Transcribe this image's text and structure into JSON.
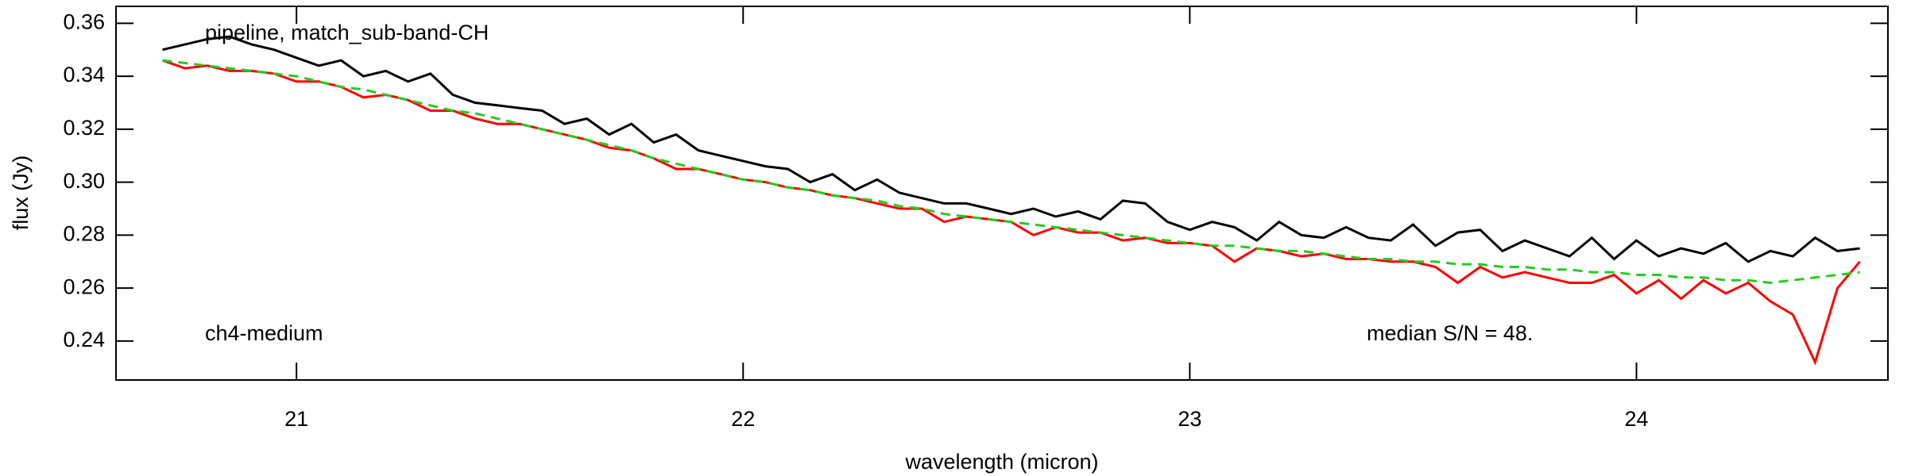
{
  "chart_data": {
    "type": "line",
    "xlabel": "wavelength (micron)",
    "ylabel": "flux (Jy)",
    "annotations": [
      "pipeline, match_sub-band-CH",
      "ch4-medium",
      "median S/N =  48."
    ],
    "xlim": [
      20.596,
      24.563
    ],
    "ylim": [
      0.2253,
      0.3664
    ],
    "xticks": [
      21,
      22,
      23,
      24
    ],
    "yticks": [
      0.24,
      0.26,
      0.28,
      {
        "value": 0.3,
        "label": "0.30"
      },
      0.32,
      0.34,
      0.36
    ],
    "x": [
      20.7,
      20.75,
      20.8,
      20.85,
      20.9,
      20.95,
      21,
      21.05,
      21.1,
      21.15,
      21.2,
      21.25,
      21.3,
      21.35,
      21.4,
      21.45,
      21.5,
      21.55,
      21.6,
      21.65,
      21.7,
      21.75,
      21.8,
      21.85,
      21.9,
      21.95,
      22,
      22.05,
      22.1,
      22.15,
      22.2,
      22.25,
      22.3,
      22.35,
      22.4,
      22.45,
      22.5,
      22.55,
      22.6,
      22.65,
      22.7,
      22.75,
      22.8,
      22.85,
      22.9,
      22.95,
      23,
      23.05,
      23.1,
      23.15,
      23.2,
      23.25,
      23.3,
      23.35,
      23.4,
      23.45,
      23.5,
      23.55,
      23.6,
      23.65,
      23.7,
      23.75,
      23.8,
      23.85,
      23.9,
      23.95,
      24,
      24.05,
      24.1,
      24.15,
      24.2,
      24.25,
      24.3,
      24.35,
      24.4,
      24.45,
      24.5
    ],
    "series": [
      {
        "color": "#000000",
        "values": [
          0.35,
          0.352,
          0.354,
          0.355,
          0.352,
          0.35,
          0.347,
          0.344,
          0.346,
          0.34,
          0.342,
          0.338,
          0.341,
          0.333,
          0.33,
          0.329,
          0.328,
          0.327,
          0.322,
          0.324,
          0.318,
          0.322,
          0.315,
          0.318,
          0.312,
          0.31,
          0.308,
          0.306,
          0.305,
          0.3,
          0.303,
          0.297,
          0.301,
          0.296,
          0.294,
          0.292,
          0.292,
          0.29,
          0.288,
          0.29,
          0.287,
          0.289,
          0.286,
          0.293,
          0.292,
          0.285,
          0.282,
          0.285,
          0.283,
          0.278,
          0.285,
          0.28,
          0.279,
          0.283,
          0.279,
          0.278,
          0.284,
          0.276,
          0.281,
          0.282,
          0.274,
          0.278,
          0.275,
          0.272,
          0.279,
          0.271,
          0.278,
          0.272,
          0.275,
          0.273,
          0.277,
          0.27,
          0.274,
          0.272,
          0.279,
          0.274,
          0.275
        ]
      },
      {
        "color": "#ff0000",
        "values": [
          0.346,
          0.343,
          0.344,
          0.342,
          0.342,
          0.341,
          0.338,
          0.338,
          0.336,
          0.332,
          0.333,
          0.331,
          0.327,
          0.327,
          0.324,
          0.322,
          0.322,
          0.32,
          0.318,
          0.316,
          0.313,
          0.312,
          0.309,
          0.305,
          0.305,
          0.303,
          0.301,
          0.3,
          0.298,
          0.297,
          0.295,
          0.294,
          0.292,
          0.29,
          0.29,
          0.285,
          0.287,
          0.286,
          0.285,
          0.28,
          0.283,
          0.281,
          0.281,
          0.278,
          0.279,
          0.277,
          0.277,
          0.276,
          0.27,
          0.275,
          0.274,
          0.272,
          0.273,
          0.271,
          0.271,
          0.27,
          0.27,
          0.268,
          0.262,
          0.268,
          0.264,
          0.266,
          0.264,
          0.262,
          0.262,
          0.265,
          0.258,
          0.263,
          0.256,
          0.263,
          0.258,
          0.262,
          0.255,
          0.25,
          0.232,
          0.26,
          0.27
        ]
      },
      {
        "color": "#22cc22",
        "dashed": true,
        "values": [
          0.346,
          0.345,
          0.344,
          0.343,
          0.342,
          0.341,
          0.34,
          0.338,
          0.336,
          0.335,
          0.333,
          0.331,
          0.329,
          0.327,
          0.326,
          0.324,
          0.322,
          0.32,
          0.318,
          0.316,
          0.314,
          0.312,
          0.309,
          0.307,
          0.305,
          0.303,
          0.301,
          0.3,
          0.298,
          0.297,
          0.295,
          0.294,
          0.293,
          0.291,
          0.29,
          0.288,
          0.287,
          0.286,
          0.285,
          0.284,
          0.283,
          0.282,
          0.281,
          0.28,
          0.279,
          0.278,
          0.277,
          0.276,
          0.276,
          0.275,
          0.274,
          0.274,
          0.273,
          0.272,
          0.271,
          0.271,
          0.27,
          0.27,
          0.269,
          0.269,
          0.268,
          0.268,
          0.267,
          0.267,
          0.266,
          0.266,
          0.265,
          0.265,
          0.264,
          0.264,
          0.263,
          0.263,
          0.262,
          0.263,
          0.264,
          0.265,
          0.266
        ]
      }
    ]
  }
}
